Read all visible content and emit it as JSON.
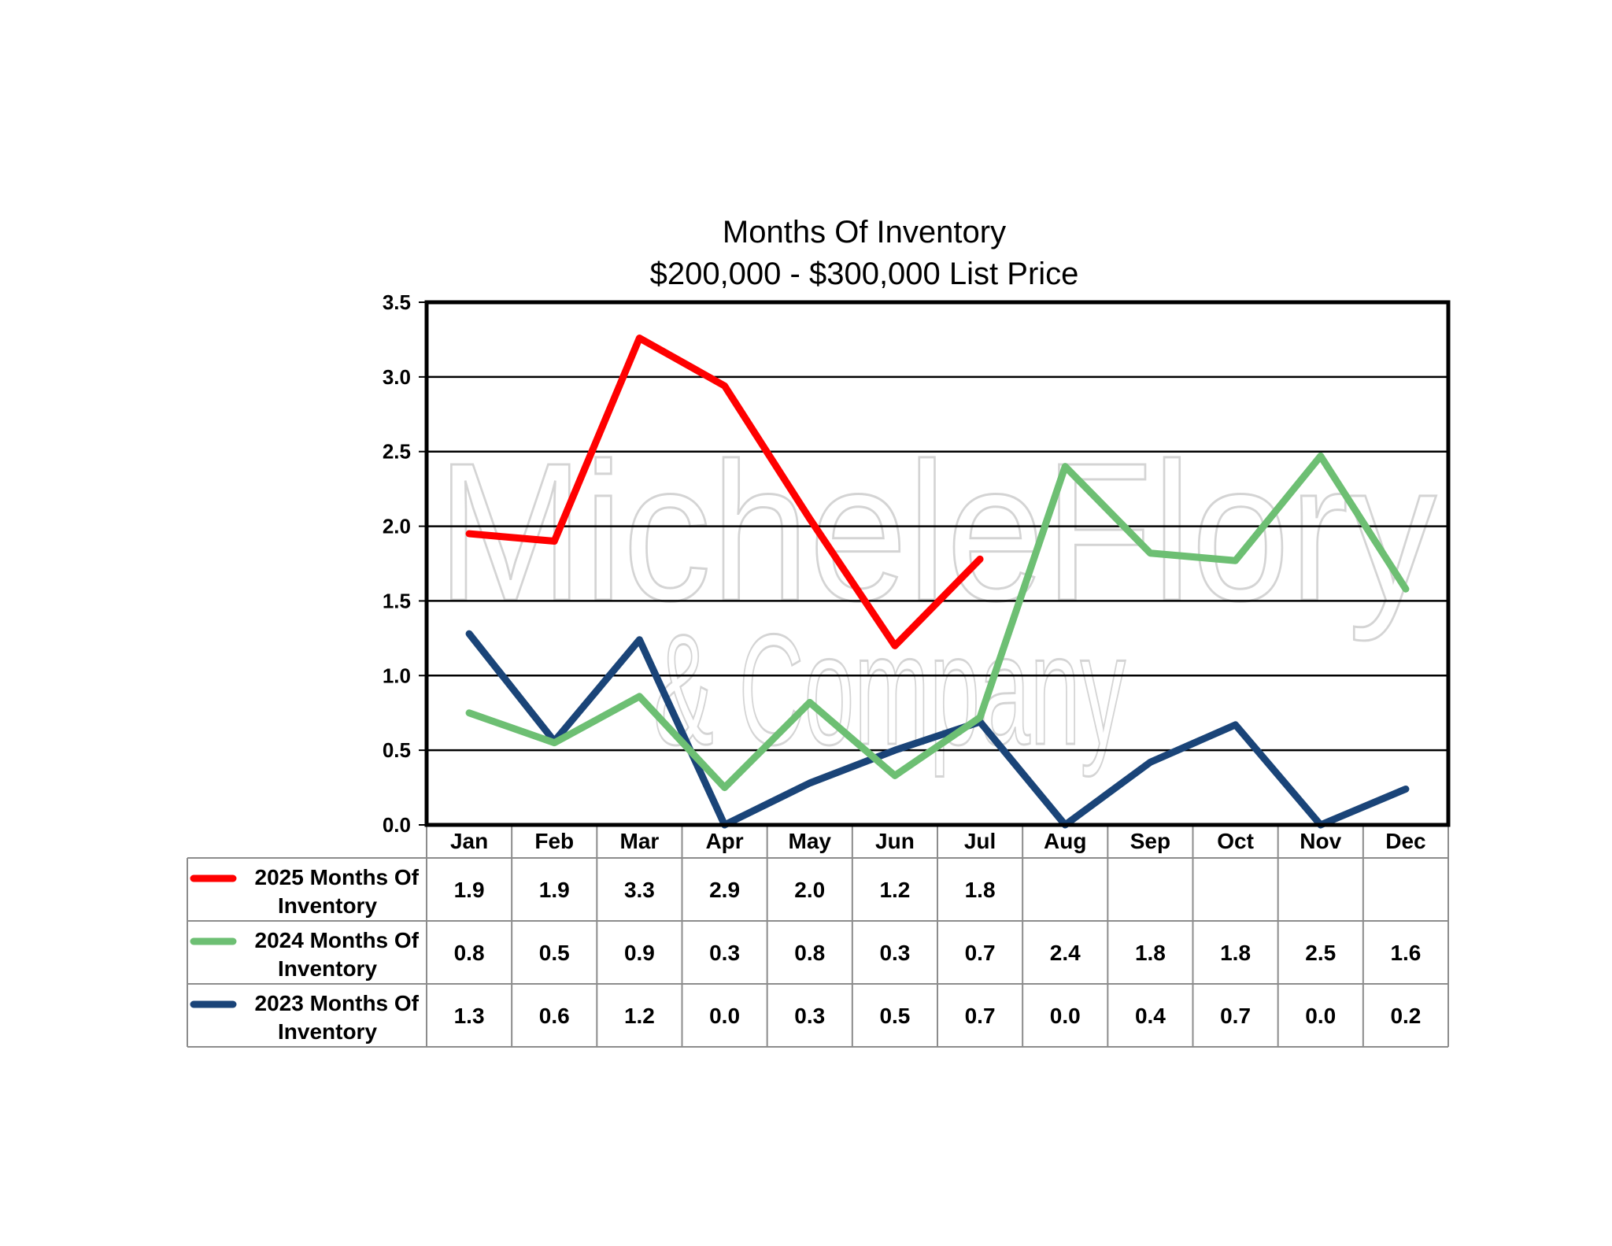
{
  "chart_data": {
    "type": "line",
    "title": "Months Of Inventory",
    "subtitle": "$200,000 - $300,000 List Price",
    "categories": [
      "Jan",
      "Feb",
      "Mar",
      "Apr",
      "May",
      "Jun",
      "Jul",
      "Aug",
      "Sep",
      "Oct",
      "Nov",
      "Dec"
    ],
    "ylim": [
      0,
      3.5
    ],
    "yticks": [
      "0.0",
      "0.5",
      "1.0",
      "1.5",
      "2.0",
      "2.5",
      "3.0",
      "3.5"
    ],
    "grid": true,
    "legend": "data-table-below",
    "watermark": [
      "MicheleFlory",
      "& Company"
    ],
    "series": [
      {
        "name_line1": "2025 Months Of",
        "name_line2": "Inventory",
        "color": "#ff0000",
        "values": [
          1.95,
          1.9,
          3.26,
          2.94,
          2.05,
          1.2,
          1.78,
          null,
          null,
          null,
          null,
          null
        ],
        "labels": [
          "1.9",
          "1.9",
          "3.3",
          "2.9",
          "2.0",
          "1.2",
          "1.8",
          "",
          "",
          "",
          "",
          ""
        ]
      },
      {
        "name_line1": "2024 Months Of",
        "name_line2": "Inventory",
        "color": "#6dbf73",
        "values": [
          0.75,
          0.55,
          0.86,
          0.25,
          0.82,
          0.33,
          0.72,
          2.4,
          1.82,
          1.77,
          2.47,
          1.58
        ],
        "labels": [
          "0.8",
          "0.5",
          "0.9",
          "0.3",
          "0.8",
          "0.3",
          "0.7",
          "2.4",
          "1.8",
          "1.8",
          "2.5",
          "1.6"
        ]
      },
      {
        "name_line1": "2023 Months Of",
        "name_line2": "Inventory",
        "color": "#1a4478",
        "values": [
          1.28,
          0.56,
          1.24,
          0.0,
          0.28,
          0.5,
          0.69,
          0.0,
          0.42,
          0.67,
          0.0,
          0.24
        ],
        "labels": [
          "1.3",
          "0.6",
          "1.2",
          "0.0",
          "0.3",
          "0.5",
          "0.7",
          "0.0",
          "0.4",
          "0.7",
          "0.0",
          "0.2"
        ]
      }
    ]
  }
}
